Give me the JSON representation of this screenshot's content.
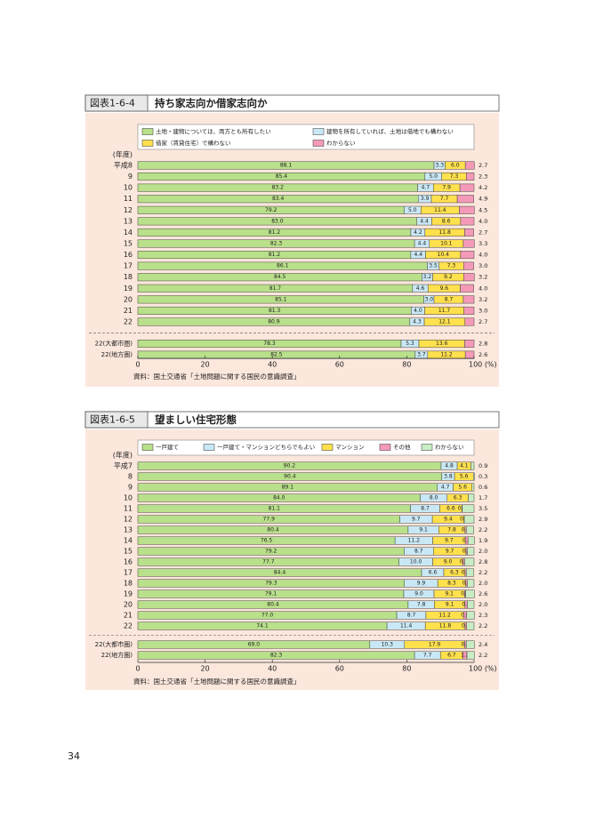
{
  "chart_data": [
    {
      "type": "stacked_bar_horizontal",
      "figure_label": "図表1-6-4",
      "title": "持ち家志向か借家志向か",
      "y_label": "(年度)",
      "source": "資料：国土交通省「土地問題に関する国民の意識調査」",
      "categories": [
        "平成8",
        "9",
        "10",
        "11",
        "12",
        "13",
        "14",
        "15",
        "16",
        "17",
        "18",
        "19",
        "20",
        "21",
        "22",
        "22(大都市圏)",
        "22(地方圏)"
      ],
      "series": [
        {
          "name": "土地・建物については、両方とも所有したい",
          "color": "#b9e08a",
          "values": [
            88.1,
            85.4,
            83.2,
            83.4,
            79.2,
            83.0,
            81.2,
            82.3,
            81.2,
            86.1,
            84.5,
            81.7,
            85.1,
            81.3,
            80.9,
            78.3,
            82.5
          ],
          "value_labels": [
            "88.1",
            "85.4",
            "83.2",
            "83.4",
            "79.2",
            "83.0",
            "81.2",
            "82.3",
            "81.2",
            "86.1",
            "84.5",
            "81.7",
            "85.1",
            "81.3",
            "80.9",
            "78.3",
            "82.5"
          ]
        },
        {
          "name": "建物を所有していれば、土地は借地でも構わない",
          "color": "#c9e8f5",
          "values": [
            3.3,
            5.0,
            4.7,
            3.9,
            5.0,
            4.4,
            4.2,
            4.4,
            4.4,
            3.5,
            3.2,
            4.6,
            3.0,
            4.0,
            4.3,
            5.3,
            3.7
          ],
          "value_labels": [
            "3.3",
            "5.0",
            "4.7",
            "3.9",
            "5.0",
            "4.4",
            "4.2",
            "4.4",
            "4.4",
            "3.5",
            "3.2",
            "4.6",
            "3.0",
            "4.0",
            "4.3",
            "5.3",
            "3.7"
          ]
        },
        {
          "name": "借家（賃貸住宅）で構わない",
          "color": "#ffe04d",
          "values": [
            6.0,
            7.3,
            7.9,
            7.7,
            11.4,
            8.6,
            11.8,
            10.1,
            10.4,
            7.3,
            9.2,
            9.6,
            8.7,
            11.7,
            12.1,
            13.6,
            11.2
          ],
          "value_labels": [
            "6.0",
            "7.3",
            "7.9",
            "7.7",
            "11.4",
            "8.6",
            "11.8",
            "10.1",
            "10.4",
            "7.3",
            "9.2",
            "9.6",
            "8.7",
            "11.7",
            "12.1",
            "13.6",
            "11.2"
          ]
        },
        {
          "name": "わからない",
          "color": "#f49ab8",
          "values": [
            2.7,
            2.3,
            4.2,
            4.9,
            4.5,
            4.0,
            2.7,
            3.3,
            4.0,
            3.0,
            3.2,
            4.0,
            3.2,
            3.0,
            2.7,
            2.8,
            2.6
          ],
          "value_labels": [
            "2.7",
            "2.3",
            "4.2",
            "4.9",
            "4.5",
            "4.0",
            "2.7",
            "3.3",
            "4.0",
            "3.0",
            "3.2",
            "4.0",
            "3.2",
            "3.0",
            "2.7",
            "2.8",
            "2.6"
          ]
        }
      ],
      "xlim": [
        0,
        100
      ],
      "xticks": [
        0,
        20,
        40,
        60,
        80,
        {
          "value": 100,
          "label": "100 (%)"
        }
      ]
    },
    {
      "type": "stacked_bar_horizontal",
      "figure_label": "図表1-6-5",
      "title": "望ましい住宅形態",
      "y_label": "(年度)",
      "source": "資料：国土交通省「土地問題に関する国民の意識調査」",
      "categories": [
        "平成7",
        "8",
        "9",
        "10",
        "11",
        "12",
        "13",
        "14",
        "15",
        "16",
        "17",
        "18",
        "19",
        "20",
        "21",
        "22",
        "22(大都市圏)",
        "22(地方圏)"
      ],
      "series": [
        {
          "name": "一戸建て",
          "color": "#b9e08a",
          "values": [
            90.2,
            90.4,
            89.1,
            84.0,
            81.1,
            77.9,
            80.4,
            76.5,
            79.2,
            77.7,
            84.4,
            79.3,
            79.1,
            80.4,
            77.0,
            74.1,
            69.0,
            82.3
          ],
          "value_labels": [
            "90.2",
            "90.4",
            "89.1",
            "84.0",
            "81.1",
            "77.9",
            "80.4",
            "76.5",
            "79.2",
            "77.7",
            "84.4",
            "79.3",
            "79.1",
            "80.4",
            "77.0",
            "74.1",
            "69.0",
            "82.3"
          ]
        },
        {
          "name": "一戸建て・マンションどちらでもよい",
          "color": "#c9e8f5",
          "values": [
            4.8,
            3.8,
            4.7,
            8.0,
            8.7,
            9.7,
            9.1,
            11.2,
            8.7,
            10.0,
            6.6,
            9.9,
            9.0,
            7.8,
            8.7,
            11.4,
            10.3,
            7.7
          ],
          "value_labels": [
            "4.8",
            "3.8",
            "4.7",
            "8.0",
            "8.7",
            "9.7",
            "9.1",
            "11.2",
            "8.7",
            "10.0",
            "6.6",
            "9.9",
            "9.0",
            "7.8",
            "8.7",
            "11.4",
            "10.3",
            "7.7"
          ]
        },
        {
          "name": "マンション",
          "color": "#ffe04d",
          "values": [
            4.1,
            5.6,
            5.6,
            6.3,
            6.6,
            9.4,
            7.8,
            9.7,
            9.7,
            9.0,
            6.3,
            8.3,
            9.1,
            9.1,
            11.2,
            11.8,
            17.9,
            6.7
          ],
          "value_labels": [
            "4.1",
            "5.6",
            "5.6",
            "6.3",
            "6.6",
            "9.4",
            "7.8",
            "9.7",
            "9.7",
            "9.0",
            "6.3",
            "8.3",
            "9.1",
            "9.1",
            "11.2",
            "11.8",
            "17.9",
            "6.7"
          ]
        },
        {
          "name": "その他",
          "color": "#f49ab8",
          "values": [
            null,
            null,
            null,
            null,
            0.1,
            0.1,
            0.4,
            0.8,
            0.4,
            0.5,
            0.4,
            0.5,
            0.3,
            0.7,
            0.9,
            0.5,
            0.5,
            1.2
          ],
          "value_labels": [
            null,
            null,
            null,
            null,
            "0.1",
            "0.1",
            "0.4",
            "0.8",
            "0.4",
            "0.5",
            "0.4",
            "0.5",
            "0.3",
            "0.7",
            "0.9",
            "0.5",
            "0.5",
            "1.2"
          ]
        },
        {
          "name": "わからない",
          "color": "#c8ecc4",
          "values": [
            0.9,
            0.3,
            0.6,
            1.7,
            3.5,
            2.9,
            2.2,
            1.9,
            2.0,
            2.8,
            2.2,
            2.0,
            2.6,
            2.0,
            2.3,
            2.2,
            2.4,
            2.2
          ],
          "value_labels": [
            "0.9",
            "0.3",
            "0.6",
            "1.7",
            "3.5",
            "2.9",
            "2.2",
            "1.9",
            "2.0",
            "2.8",
            "2.2",
            "2.0",
            "2.6",
            "2.0",
            "2.3",
            "2.2",
            "2.4",
            "2.2"
          ]
        }
      ],
      "xlim": [
        0,
        100
      ],
      "xticks": [
        0,
        20,
        40,
        60,
        80,
        {
          "value": 100,
          "label": "100 (%)"
        }
      ]
    }
  ],
  "page_number": "34"
}
